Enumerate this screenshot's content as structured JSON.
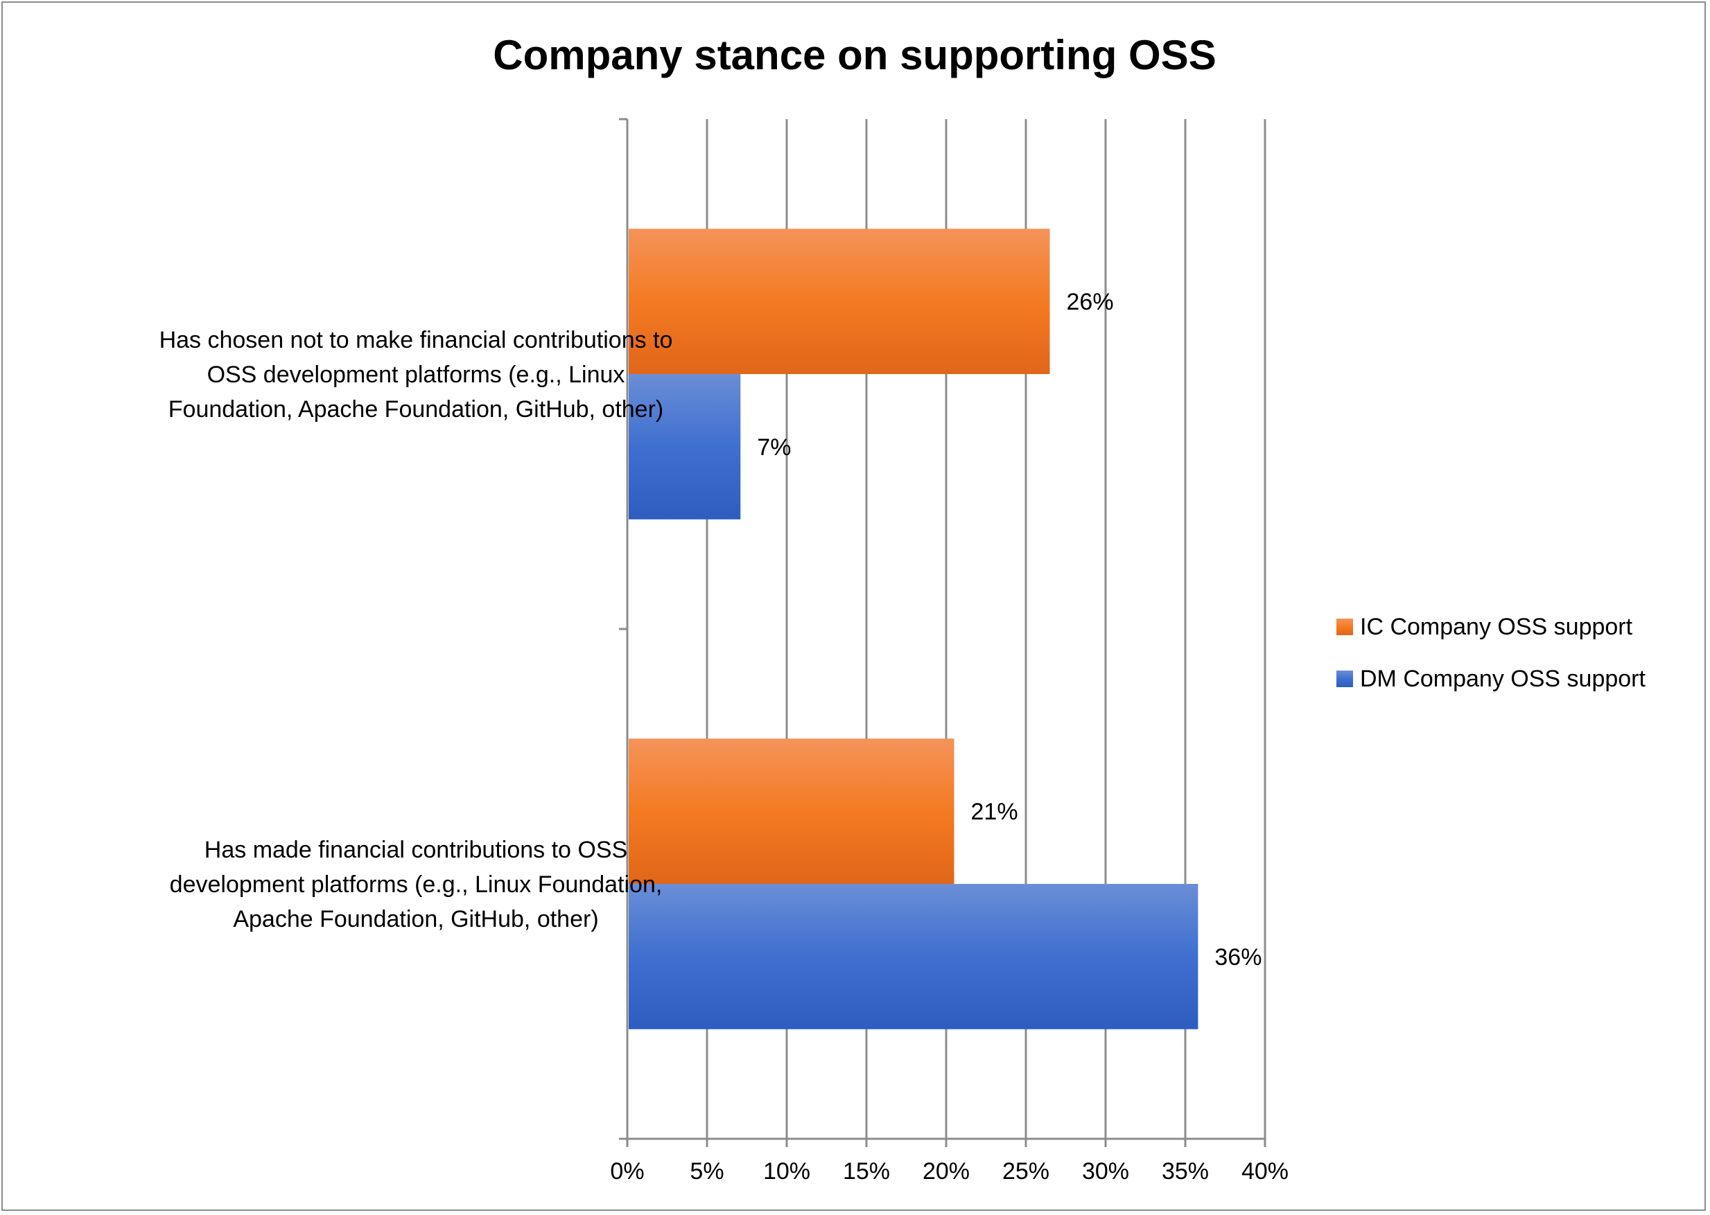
{
  "chart_data": {
    "type": "bar",
    "orientation": "horizontal",
    "title": "Company stance on supporting OSS",
    "categories": [
      [
        "Has chosen not to make financial contributions to",
        "OSS development platforms (e.g., Linux",
        "Foundation, Apache Foundation, GitHub, other)"
      ],
      [
        "Has made financial contributions to OSS",
        "development platforms (e.g., Linux Foundation,",
        "Apache Foundation, GitHub, other)"
      ]
    ],
    "series": [
      {
        "name": "IC Company OSS support",
        "values": [
          26.5,
          20.5
        ],
        "labels": [
          "26%",
          "21%"
        ],
        "color": "#ED7D31"
      },
      {
        "name": "DM Company OSS  support",
        "values": [
          7.1,
          35.8
        ],
        "labels": [
          "7%",
          "36%"
        ],
        "color": "#4472C4"
      }
    ],
    "xlim": [
      0,
      40
    ],
    "xticks": [
      0,
      5,
      10,
      15,
      20,
      25,
      30,
      35,
      40
    ],
    "xtick_labels": [
      "0%",
      "5%",
      "10%",
      "15%",
      "20%",
      "25%",
      "30%",
      "35%",
      "40%"
    ],
    "grid": "vertical",
    "legend": "right",
    "legend_entries": [
      "IC Company OSS support",
      "DM Company OSS  support"
    ]
  }
}
